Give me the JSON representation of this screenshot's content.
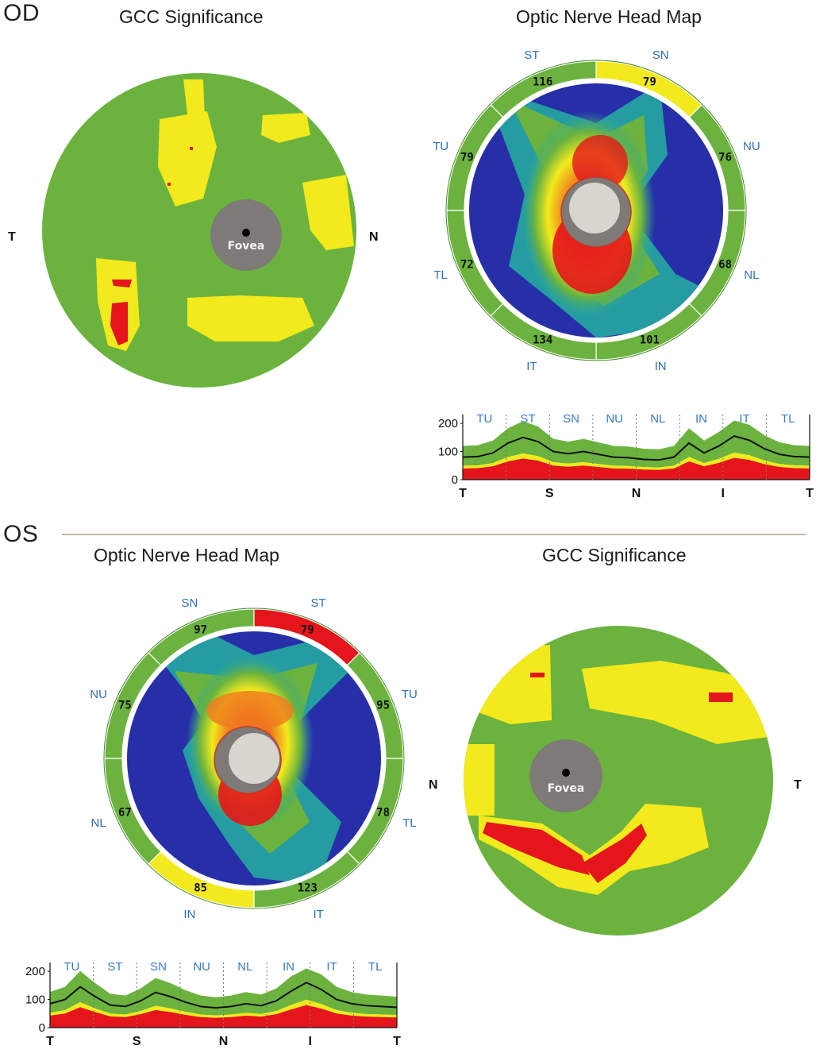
{
  "od": {
    "eye_label": "OD",
    "gcc_title": "GCC Significance",
    "gcc_left": "T",
    "gcc_right": "N",
    "fovea_label": "Fovea",
    "onh_title": "Optic Nerve Head Map",
    "sectors": [
      {
        "label": "ST",
        "value": "116",
        "status": "normal"
      },
      {
        "label": "SN",
        "value": "79",
        "status": "borderline"
      },
      {
        "label": "NU",
        "value": "76",
        "status": "normal"
      },
      {
        "label": "NL",
        "value": "68",
        "status": "normal"
      },
      {
        "label": "IN",
        "value": "101",
        "status": "normal"
      },
      {
        "label": "IT",
        "value": "134",
        "status": "normal"
      },
      {
        "label": "TL",
        "value": "72",
        "status": "normal"
      },
      {
        "label": "TU",
        "value": "79",
        "status": "normal"
      }
    ],
    "tsnit": {
      "sectors": [
        "TU",
        "ST",
        "SN",
        "NU",
        "NL",
        "IN",
        "IT",
        "TL"
      ],
      "yticks": [
        "200",
        "100",
        "0"
      ],
      "xticks": [
        "T",
        "S",
        "N",
        "I",
        "T"
      ],
      "thickness": [
        80,
        82,
        95,
        130,
        150,
        135,
        100,
        92,
        100,
        90,
        80,
        78,
        72,
        70,
        80,
        130,
        95,
        120,
        155,
        140,
        110,
        90,
        82,
        80
      ]
    }
  },
  "os": {
    "eye_label": "OS",
    "onh_title": "Optic Nerve Head Map",
    "gcc_title": "GCC Significance",
    "gcc_left": "N",
    "gcc_right": "T",
    "fovea_label": "Fovea",
    "sectors": [
      {
        "label": "SN",
        "value": "97",
        "status": "normal"
      },
      {
        "label": "ST",
        "value": "79",
        "status": "abnormal"
      },
      {
        "label": "TU",
        "value": "95",
        "status": "normal"
      },
      {
        "label": "TL",
        "value": "78",
        "status": "normal"
      },
      {
        "label": "IT",
        "value": "123",
        "status": "normal"
      },
      {
        "label": "IN",
        "value": "85",
        "status": "borderline"
      },
      {
        "label": "NL",
        "value": "67",
        "status": "normal"
      },
      {
        "label": "NU",
        "value": "75",
        "status": "normal"
      }
    ],
    "tsnit": {
      "sectors": [
        "TU",
        "ST",
        "SN",
        "NU",
        "NL",
        "IN",
        "IT",
        "TL"
      ],
      "yticks": [
        "200",
        "100",
        "0"
      ],
      "xticks": [
        "T",
        "S",
        "N",
        "I",
        "T"
      ],
      "thickness": [
        85,
        100,
        145,
        110,
        80,
        75,
        95,
        125,
        110,
        90,
        75,
        70,
        75,
        85,
        78,
        95,
        130,
        160,
        135,
        100,
        85,
        78,
        75,
        72
      ]
    }
  },
  "colors": {
    "normal": "#6bb33e",
    "borderline": "#f2ea1c",
    "abnormal": "#e4161b",
    "map_blue": "#262fa8",
    "fovea": "#7d7a78",
    "disc": "#d8d4ce",
    "label_blue": "#2f6fb6"
  }
}
